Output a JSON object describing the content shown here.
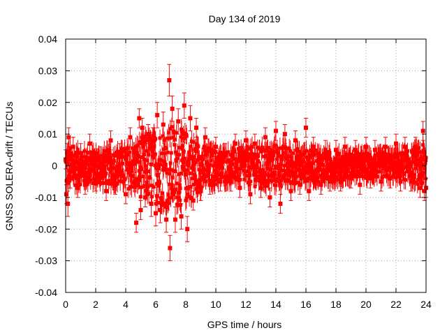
{
  "chart_data": {
    "type": "scatter",
    "title": "Day 134 of 2019",
    "xlabel": "GPS time / hours",
    "ylabel": "GNSS SOLERA-drift / TECUs",
    "xlim": [
      0,
      24
    ],
    "ylim": [
      -0.04,
      0.04
    ],
    "x_ticks": [
      0,
      2,
      4,
      6,
      8,
      10,
      12,
      14,
      16,
      18,
      20,
      22,
      24
    ],
    "x_tick_labels": [
      "0",
      "2",
      "4",
      "6",
      "8",
      "10",
      "12",
      "14",
      "16",
      "18",
      "20",
      "22",
      "24"
    ],
    "y_ticks": [
      -0.04,
      -0.03,
      -0.02,
      -0.01,
      0,
      0.01,
      0.02,
      0.03,
      0.04
    ],
    "y_tick_labels": [
      "-0.04",
      "-0.03",
      "-0.02",
      "-0.01",
      "0",
      "0.01",
      "0.02",
      "0.03",
      "0.04"
    ],
    "grid": true,
    "legend": "none",
    "error_bars": true,
    "series_color": "#ff0000",
    "series": [
      {
        "x": [
          0.0,
          0.05,
          0.1,
          0.15,
          0.2,
          0.3,
          0.5,
          0.8,
          1.0,
          1.3,
          1.6,
          2.0,
          2.3,
          2.7,
          3.0,
          3.3,
          3.6,
          4.0,
          4.3,
          4.6,
          4.7,
          4.9,
          5.0,
          5.1,
          5.3,
          5.5,
          5.7,
          5.8,
          6.0,
          6.1,
          6.3,
          6.5,
          6.7,
          6.9,
          6.95,
          7.1,
          7.3,
          7.5,
          7.7,
          7.9,
          8.1,
          8.3,
          8.5,
          8.7,
          9.0,
          9.3,
          9.6,
          10.0,
          10.3,
          10.6,
          11.0,
          11.3,
          11.6,
          12.0,
          12.3,
          12.6,
          13.0,
          13.3,
          13.6,
          14.0,
          14.3,
          14.6,
          15.0,
          15.3,
          15.6,
          16.0,
          16.2,
          16.5,
          17.0,
          17.3,
          17.6,
          18.0,
          18.3,
          18.6,
          19.0,
          19.3,
          19.6,
          20.0,
          20.3,
          20.6,
          21.0,
          21.3,
          21.6,
          22.0,
          22.3,
          22.6,
          23.0,
          23.3,
          23.6,
          23.8,
          23.9,
          24.0
        ],
        "y": [
          0.002,
          -0.009,
          0.004,
          -0.012,
          0.009,
          -0.004,
          0.006,
          -0.007,
          0.004,
          -0.006,
          0.007,
          -0.005,
          0.003,
          -0.008,
          0.008,
          -0.006,
          0.004,
          -0.009,
          0.009,
          -0.005,
          -0.018,
          0.015,
          -0.014,
          0.012,
          -0.01,
          0.01,
          -0.012,
          0.008,
          -0.015,
          0.016,
          -0.014,
          0.013,
          -0.017,
          0.027,
          -0.026,
          0.018,
          -0.017,
          0.014,
          -0.016,
          0.019,
          -0.02,
          0.015,
          -0.011,
          0.012,
          -0.008,
          0.009,
          -0.006,
          0.006,
          -0.005,
          0.004,
          -0.005,
          0.007,
          -0.007,
          0.008,
          -0.009,
          0.007,
          -0.007,
          0.009,
          -0.01,
          0.011,
          -0.012,
          0.01,
          -0.008,
          0.008,
          -0.006,
          0.012,
          -0.008,
          0.006,
          -0.006,
          0.005,
          -0.005,
          0.005,
          -0.005,
          0.006,
          -0.004,
          0.005,
          -0.006,
          0.006,
          -0.004,
          0.005,
          -0.005,
          0.006,
          -0.004,
          0.007,
          -0.005,
          0.006,
          -0.005,
          0.006,
          -0.007,
          0.011,
          -0.008,
          -0.007
        ],
        "y_error": [
          0.003,
          0.003,
          0.003,
          0.004,
          0.003,
          0.003,
          0.003,
          0.003,
          0.003,
          0.003,
          0.003,
          0.003,
          0.003,
          0.003,
          0.003,
          0.003,
          0.003,
          0.003,
          0.003,
          0.003,
          0.003,
          0.003,
          0.003,
          0.003,
          0.003,
          0.003,
          0.004,
          0.004,
          0.004,
          0.004,
          0.004,
          0.004,
          0.004,
          0.005,
          0.004,
          0.004,
          0.004,
          0.004,
          0.004,
          0.004,
          0.004,
          0.004,
          0.003,
          0.003,
          0.003,
          0.003,
          0.003,
          0.003,
          0.003,
          0.003,
          0.003,
          0.003,
          0.003,
          0.003,
          0.003,
          0.003,
          0.003,
          0.003,
          0.003,
          0.003,
          0.003,
          0.003,
          0.003,
          0.003,
          0.003,
          0.003,
          0.003,
          0.003,
          0.003,
          0.003,
          0.003,
          0.003,
          0.003,
          0.003,
          0.003,
          0.003,
          0.003,
          0.003,
          0.003,
          0.003,
          0.003,
          0.003,
          0.003,
          0.003,
          0.003,
          0.003,
          0.003,
          0.003,
          0.003,
          0.003,
          0.003,
          0.003
        ],
        "envelope": {
          "x": [
            0,
            1,
            2,
            3,
            4,
            4.5,
            5,
            5.5,
            6,
            6.5,
            7,
            7.5,
            8,
            8.5,
            9,
            10,
            11,
            12,
            13,
            14,
            15,
            16,
            17,
            18,
            19,
            20,
            21,
            22,
            23,
            23.5,
            24
          ],
          "y_upper": [
            0.006,
            0.005,
            0.005,
            0.005,
            0.006,
            0.007,
            0.009,
            0.01,
            0.011,
            0.012,
            0.013,
            0.012,
            0.011,
            0.009,
            0.007,
            0.005,
            0.005,
            0.006,
            0.006,
            0.007,
            0.006,
            0.005,
            0.005,
            0.004,
            0.004,
            0.004,
            0.004,
            0.004,
            0.005,
            0.006,
            0.007
          ],
          "y_lower": [
            -0.007,
            -0.006,
            -0.006,
            -0.006,
            -0.007,
            -0.008,
            -0.01,
            -0.011,
            -0.012,
            -0.013,
            -0.014,
            -0.013,
            -0.012,
            -0.01,
            -0.008,
            -0.006,
            -0.005,
            -0.006,
            -0.007,
            -0.007,
            -0.006,
            -0.005,
            -0.005,
            -0.005,
            -0.004,
            -0.004,
            -0.004,
            -0.004,
            -0.005,
            -0.006,
            -0.007
          ]
        }
      }
    ]
  }
}
